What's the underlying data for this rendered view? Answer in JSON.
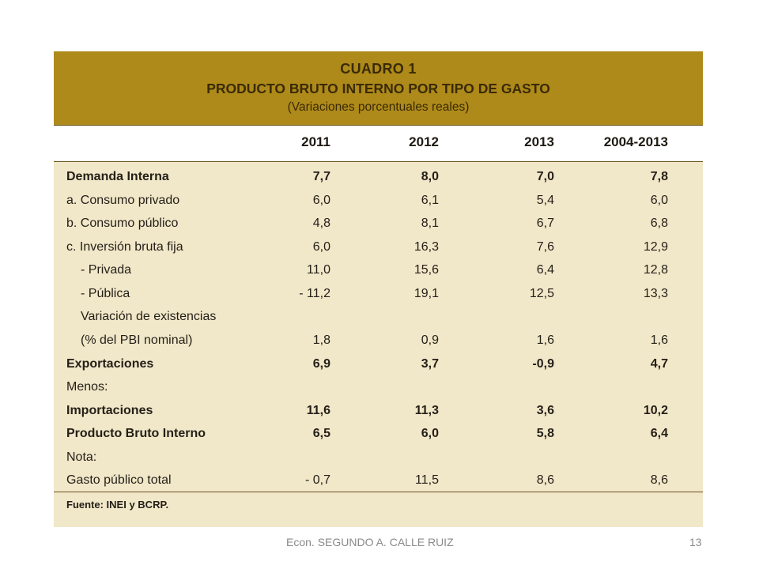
{
  "table": {
    "title": "CUADRO 1",
    "subtitle": "PRODUCTO BRUTO INTERNO POR TIPO DE GASTO",
    "note": "(Variaciones porcentuales reales)",
    "columns": [
      "2011",
      "2012",
      "2013",
      "2004-2013"
    ],
    "rows": [
      {
        "label": "Demanda Interna",
        "v": [
          "7,7",
          "8,0",
          "7,0",
          "7,8"
        ]
      },
      {
        "label": "a. Consumo privado",
        "v": [
          "6,0",
          "6,1",
          "5,4",
          "6,0"
        ]
      },
      {
        "label": "b. Consumo público",
        "v": [
          "4,8",
          "8,1",
          "6,7",
          "6,8"
        ]
      },
      {
        "label": "c. Inversión bruta fija",
        "v": [
          "6,0",
          "16,3",
          "7,6",
          "12,9"
        ]
      },
      {
        "label": "- Privada",
        "v": [
          "11,0",
          "15,6",
          "6,4",
          "12,8"
        ]
      },
      {
        "label": "- Pública",
        "v": [
          "- 11,2",
          "19,1",
          "12,5",
          "13,3"
        ]
      },
      {
        "label": "Variación de existencias",
        "v": [
          "",
          "",
          "",
          ""
        ]
      },
      {
        "label": "(% del PBI nominal)",
        "v": [
          "1,8",
          "0,9",
          "1,6",
          "1,6"
        ]
      },
      {
        "label": "Exportaciones",
        "v": [
          "6,9",
          "3,7",
          "-0,9",
          "4,7"
        ]
      },
      {
        "label": "Menos:",
        "v": [
          "",
          "",
          "",
          ""
        ]
      },
      {
        "label": "Importaciones",
        "v": [
          "11,6",
          "11,3",
          "3,6",
          "10,2"
        ]
      },
      {
        "label": "Producto Bruto Interno",
        "v": [
          "6,5",
          "6,0",
          "5,8",
          "6,4"
        ]
      },
      {
        "label": "Nota:",
        "v": [
          "",
          "",
          "",
          ""
        ]
      },
      {
        "label": "Gasto público total",
        "v": [
          "- 0,7",
          "11,5",
          "8,6",
          "8,6"
        ]
      }
    ],
    "source": "Fuente: INEI y BCRP."
  },
  "footer": {
    "author": "Econ. SEGUNDO A. CALLE RUIZ",
    "page_number": "13"
  },
  "colors": {
    "header_band": "#ae8a1a",
    "table_background": "#f1e7c9"
  }
}
